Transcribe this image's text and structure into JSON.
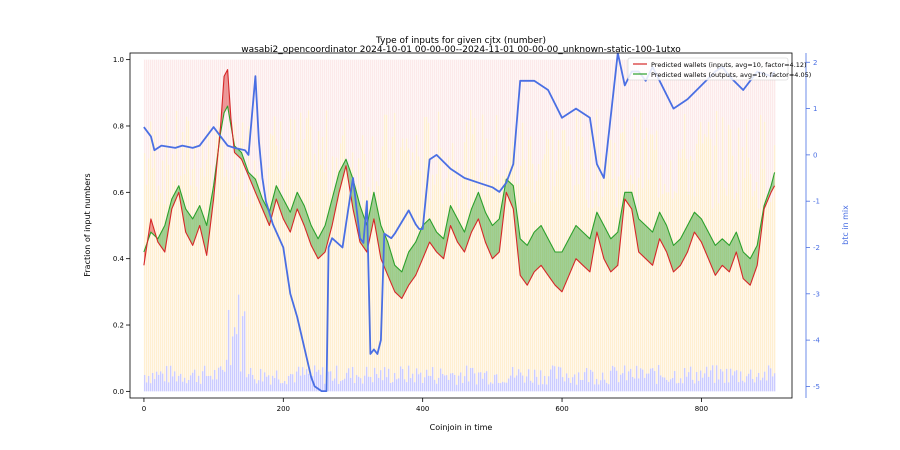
{
  "chart_data": {
    "type": "line",
    "title": "Type of inputs for given cjtx (number)",
    "subtitle": "wasabi2_opencoordinator 2024-10-01 00-00-00--2024-11-01 00-00-00_unknown-static-100-1utxo",
    "xlabel": "Coinjoin in time",
    "ylabel": "Fraction of input numbers",
    "y2label": "btc in mix",
    "xlim": [
      -20,
      930
    ],
    "ylim": [
      -0.02,
      1.02
    ],
    "y2lim": [
      -5.25,
      2.2
    ],
    "xticks": [
      "0",
      "200",
      "400",
      "600",
      "800"
    ],
    "yticks": [
      "0.0",
      "0.2",
      "0.4",
      "0.6",
      "0.8",
      "1.0"
    ],
    "y2ticks": [
      "-5",
      "-4",
      "-3",
      "-2",
      "-1",
      "0",
      "1",
      "2"
    ],
    "grid": false,
    "legend_position": "top-right",
    "colors": {
      "inputs": "#d62728",
      "outputs": "#2ca02c",
      "btc": "#4a6fe3"
    },
    "series": [
      {
        "name": "Predicted wallets (inputs, avg=10, factor=4.12)",
        "x": [
          0,
          10,
          20,
          30,
          40,
          50,
          60,
          70,
          80,
          90,
          100,
          110,
          115,
          120,
          125,
          130,
          140,
          150,
          160,
          170,
          180,
          190,
          200,
          210,
          220,
          230,
          240,
          250,
          260,
          270,
          280,
          290,
          300,
          310,
          320,
          330,
          340,
          350,
          360,
          370,
          380,
          390,
          400,
          410,
          420,
          430,
          440,
          450,
          460,
          470,
          480,
          490,
          500,
          510,
          520,
          530,
          540,
          550,
          560,
          570,
          580,
          590,
          600,
          610,
          620,
          630,
          640,
          650,
          660,
          670,
          680,
          690,
          700,
          710,
          720,
          730,
          740,
          750,
          760,
          770,
          780,
          790,
          800,
          810,
          820,
          830,
          840,
          850,
          860,
          870,
          880,
          890,
          900,
          905
        ],
        "y": [
          0.38,
          0.52,
          0.45,
          0.42,
          0.55,
          0.6,
          0.48,
          0.44,
          0.5,
          0.41,
          0.58,
          0.8,
          0.95,
          0.97,
          0.82,
          0.72,
          0.7,
          0.65,
          0.6,
          0.55,
          0.5,
          0.58,
          0.52,
          0.48,
          0.55,
          0.5,
          0.44,
          0.4,
          0.42,
          0.5,
          0.6,
          0.68,
          0.55,
          0.45,
          0.42,
          0.52,
          0.4,
          0.35,
          0.3,
          0.28,
          0.32,
          0.35,
          0.4,
          0.45,
          0.42,
          0.4,
          0.5,
          0.45,
          0.42,
          0.48,
          0.52,
          0.45,
          0.4,
          0.42,
          0.6,
          0.55,
          0.35,
          0.32,
          0.36,
          0.38,
          0.35,
          0.32,
          0.3,
          0.35,
          0.4,
          0.38,
          0.36,
          0.48,
          0.4,
          0.36,
          0.38,
          0.58,
          0.55,
          0.42,
          0.4,
          0.38,
          0.46,
          0.42,
          0.36,
          0.38,
          0.42,
          0.48,
          0.45,
          0.4,
          0.35,
          0.38,
          0.36,
          0.42,
          0.34,
          0.32,
          0.38,
          0.55,
          0.6,
          0.62
        ]
      },
      {
        "name": "Predicted wallets (outputs, avg=10, factor=4.05)",
        "x": [
          0,
          10,
          20,
          30,
          40,
          50,
          60,
          70,
          80,
          90,
          100,
          110,
          115,
          120,
          125,
          130,
          140,
          150,
          160,
          170,
          180,
          190,
          200,
          210,
          220,
          230,
          240,
          250,
          260,
          270,
          280,
          290,
          300,
          310,
          320,
          330,
          340,
          350,
          360,
          370,
          380,
          390,
          400,
          410,
          420,
          430,
          440,
          450,
          460,
          470,
          480,
          490,
          500,
          510,
          520,
          530,
          540,
          550,
          560,
          570,
          580,
          590,
          600,
          610,
          620,
          630,
          640,
          650,
          660,
          670,
          680,
          690,
          700,
          710,
          720,
          730,
          740,
          750,
          760,
          770,
          780,
          790,
          800,
          810,
          820,
          830,
          840,
          850,
          860,
          870,
          880,
          890,
          900,
          905
        ],
        "y": [
          0.42,
          0.48,
          0.46,
          0.5,
          0.58,
          0.62,
          0.55,
          0.52,
          0.56,
          0.5,
          0.62,
          0.78,
          0.84,
          0.86,
          0.8,
          0.74,
          0.72,
          0.66,
          0.64,
          0.58,
          0.54,
          0.62,
          0.58,
          0.54,
          0.6,
          0.56,
          0.5,
          0.46,
          0.5,
          0.58,
          0.66,
          0.7,
          0.64,
          0.56,
          0.5,
          0.6,
          0.5,
          0.45,
          0.38,
          0.36,
          0.42,
          0.45,
          0.5,
          0.52,
          0.48,
          0.46,
          0.56,
          0.52,
          0.48,
          0.55,
          0.6,
          0.54,
          0.5,
          0.52,
          0.64,
          0.62,
          0.46,
          0.44,
          0.48,
          0.5,
          0.46,
          0.42,
          0.42,
          0.46,
          0.5,
          0.48,
          0.46,
          0.54,
          0.5,
          0.46,
          0.48,
          0.6,
          0.6,
          0.52,
          0.5,
          0.48,
          0.54,
          0.5,
          0.44,
          0.46,
          0.5,
          0.54,
          0.52,
          0.48,
          0.44,
          0.46,
          0.44,
          0.48,
          0.42,
          0.4,
          0.44,
          0.56,
          0.62,
          0.66
        ]
      },
      {
        "name": "btc in mix",
        "axis": "right",
        "x": [
          0,
          10,
          15,
          25,
          45,
          55,
          70,
          80,
          100,
          110,
          120,
          130,
          145,
          150,
          160,
          165,
          170,
          175,
          185,
          200,
          210,
          220,
          240,
          245,
          255,
          262,
          265,
          270,
          285,
          290,
          300,
          310,
          315,
          320,
          325,
          330,
          335,
          340,
          345,
          355,
          360,
          380,
          390,
          395,
          400,
          410,
          420,
          440,
          460,
          480,
          500,
          510,
          520,
          530,
          540,
          560,
          580,
          600,
          620,
          640,
          650,
          660,
          680,
          690,
          700,
          710,
          720,
          730,
          740,
          760,
          780,
          800,
          820,
          830,
          840,
          860,
          870,
          880,
          900,
          905
        ],
        "y": [
          0.6,
          0.4,
          0.1,
          0.2,
          0.15,
          0.2,
          0.15,
          0.2,
          0.6,
          0.4,
          0.2,
          0.15,
          0.1,
          0.0,
          1.7,
          0.3,
          -0.5,
          -1.0,
          -1.5,
          -2.0,
          -3.0,
          -3.5,
          -4.8,
          -5.0,
          -5.1,
          -5.1,
          -2.0,
          -1.8,
          -2.0,
          -1.5,
          -0.5,
          -1.8,
          -1.9,
          -1.0,
          -4.3,
          -4.2,
          -4.3,
          -4.0,
          -1.7,
          -1.8,
          -1.7,
          -1.2,
          -1.5,
          -1.6,
          -1.6,
          -0.1,
          0.0,
          -0.3,
          -0.5,
          -0.6,
          -0.7,
          -0.8,
          -0.6,
          -0.2,
          1.6,
          1.6,
          1.4,
          0.8,
          1.0,
          0.8,
          -0.2,
          -0.5,
          2.2,
          1.5,
          1.8,
          1.8,
          1.6,
          1.9,
          1.6,
          1.0,
          1.2,
          1.5,
          1.8,
          1.9,
          1.7,
          1.4,
          1.6,
          1.8,
          1.7,
          1.8
        ]
      }
    ]
  }
}
